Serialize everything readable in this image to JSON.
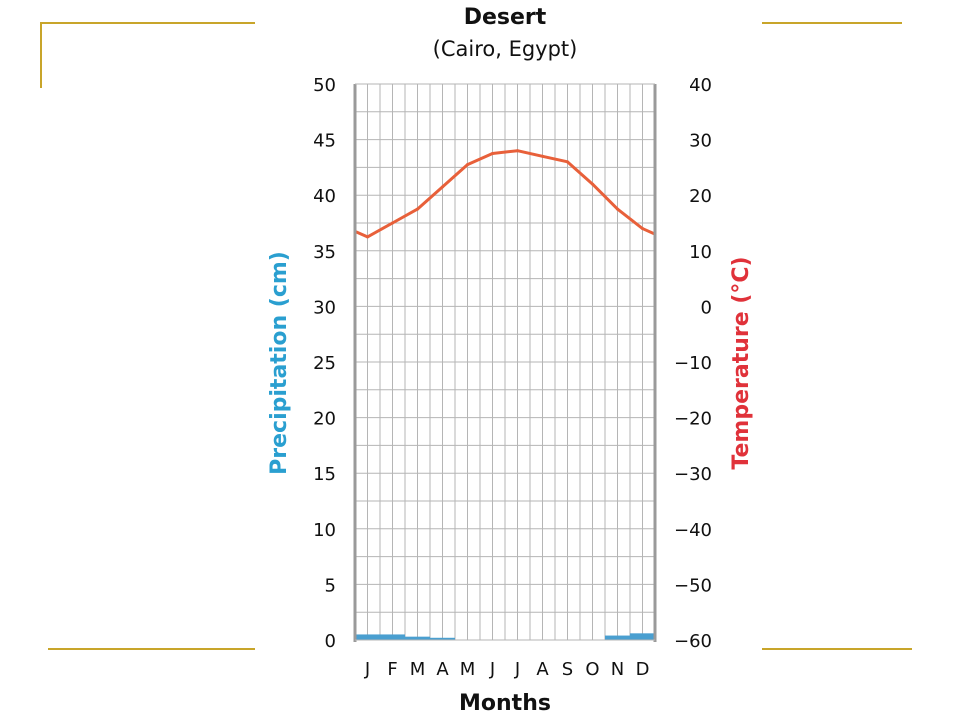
{
  "chart_data": {
    "type": "line+bar",
    "title": "Desert",
    "subtitle": "(Cairo, Egypt)",
    "xlabel": "Months",
    "ylabel_left": "Precipitation (cm)",
    "ylabel_right": "Temperature (°C)",
    "categories": [
      "J",
      "F",
      "M",
      "A",
      "M",
      "J",
      "J",
      "A",
      "S",
      "O",
      "N",
      "D"
    ],
    "left_axis": {
      "range": [
        0,
        50
      ],
      "ticks": [
        "0",
        "5",
        "10",
        "15",
        "20",
        "25",
        "30",
        "35",
        "40",
        "45",
        "50"
      ]
    },
    "right_axis": {
      "range": [
        -60,
        40
      ],
      "ticks": [
        "−60",
        "−50",
        "−40",
        "−30",
        "−20",
        "−10",
        "0",
        "10",
        "20",
        "30",
        "40"
      ]
    },
    "grid": true,
    "series": [
      {
        "kind": "bar",
        "axis": "left",
        "color": "#4a9fd0",
        "values": [
          0.5,
          0.5,
          0.3,
          0.2,
          0,
          0,
          0,
          0,
          0,
          0,
          0.4,
          0.6
        ]
      },
      {
        "kind": "line",
        "axis": "right",
        "color": "#e8603a",
        "values": [
          12.5,
          15,
          17.5,
          21.5,
          25.5,
          27.5,
          28,
          27,
          26,
          22,
          17.5,
          14
        ]
      }
    ]
  }
}
